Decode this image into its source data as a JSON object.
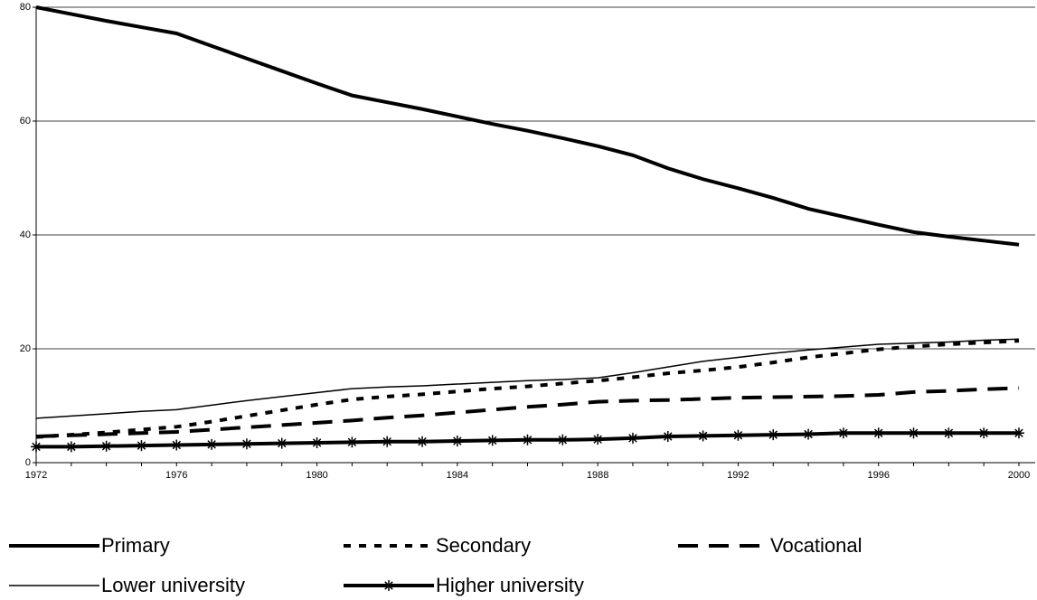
{
  "chart_data": {
    "type": "line",
    "x": [
      1972,
      1973,
      1974,
      1975,
      1976,
      1977,
      1978,
      1979,
      1980,
      1981,
      1982,
      1983,
      1984,
      1985,
      1986,
      1987,
      1988,
      1989,
      1990,
      1991,
      1992,
      1993,
      1994,
      1995,
      1996,
      1997,
      1998,
      1999,
      2000
    ],
    "xlim": [
      1972,
      2000
    ],
    "xticks": [
      1972,
      1976,
      1980,
      1984,
      1988,
      1992,
      1996,
      2000
    ],
    "ylim": [
      0,
      80
    ],
    "yticks": [
      0,
      20,
      40,
      60,
      80
    ],
    "grid": true,
    "legend": "bottom",
    "series": [
      {
        "name": "Primary",
        "color": "#000000",
        "style": "solid",
        "width": 4,
        "values": [
          80,
          78.8,
          77.6,
          76.5,
          75.4,
          73.2,
          71,
          68.8,
          66.6,
          64.5,
          63.3,
          62.1,
          60.8,
          59.5,
          58.3,
          57,
          55.6,
          54,
          51.7,
          49.8,
          48.2,
          46.5,
          44.6,
          43.2,
          41.8,
          40.5,
          39.7,
          39,
          38.3
        ]
      },
      {
        "name": "Secondary",
        "color": "#000000",
        "style": "dotted",
        "width": 4,
        "values": [
          4.5,
          4.9,
          5.3,
          5.8,
          6.3,
          7.2,
          8.2,
          9.2,
          10.2,
          11.1,
          11.6,
          12,
          12.5,
          13,
          13.4,
          13.9,
          14.4,
          15,
          15.7,
          16.2,
          16.8,
          17.6,
          18.5,
          19.2,
          19.9,
          20.4,
          20.8,
          21.1,
          21.4
        ]
      },
      {
        "name": "Vocational",
        "color": "#000000",
        "style": "dashed",
        "width": 4,
        "values": [
          4.6,
          4.8,
          5,
          5.2,
          5.4,
          5.8,
          6.2,
          6.6,
          7,
          7.4,
          7.9,
          8.3,
          8.8,
          9.3,
          9.8,
          10.2,
          10.7,
          10.9,
          11,
          11.2,
          11.4,
          11.5,
          11.6,
          11.7,
          11.9,
          12.4,
          12.6,
          12.9,
          13.1
        ]
      },
      {
        "name": "Lower university",
        "color": "#000000",
        "style": "solid",
        "width": 1.5,
        "values": [
          7.8,
          8.2,
          8.6,
          9,
          9.3,
          10.1,
          10.9,
          11.6,
          12.3,
          13,
          13.3,
          13.5,
          13.8,
          14.1,
          14.4,
          14.6,
          14.9,
          15.8,
          16.8,
          17.8,
          18.5,
          19.2,
          19.8,
          20.3,
          20.8,
          21,
          21.2,
          21.5,
          21.7
        ]
      },
      {
        "name": "Higher university",
        "color": "#000000",
        "style": "solid",
        "width": 4,
        "marker": "asterisk",
        "values": [
          2.8,
          2.8,
          2.9,
          3,
          3.1,
          3.2,
          3.3,
          3.4,
          3.5,
          3.6,
          3.7,
          3.7,
          3.8,
          3.9,
          4,
          4,
          4.1,
          4.3,
          4.6,
          4.7,
          4.8,
          4.9,
          5,
          5.2,
          5.2,
          5.2,
          5.2,
          5.2,
          5.2
        ]
      }
    ]
  }
}
